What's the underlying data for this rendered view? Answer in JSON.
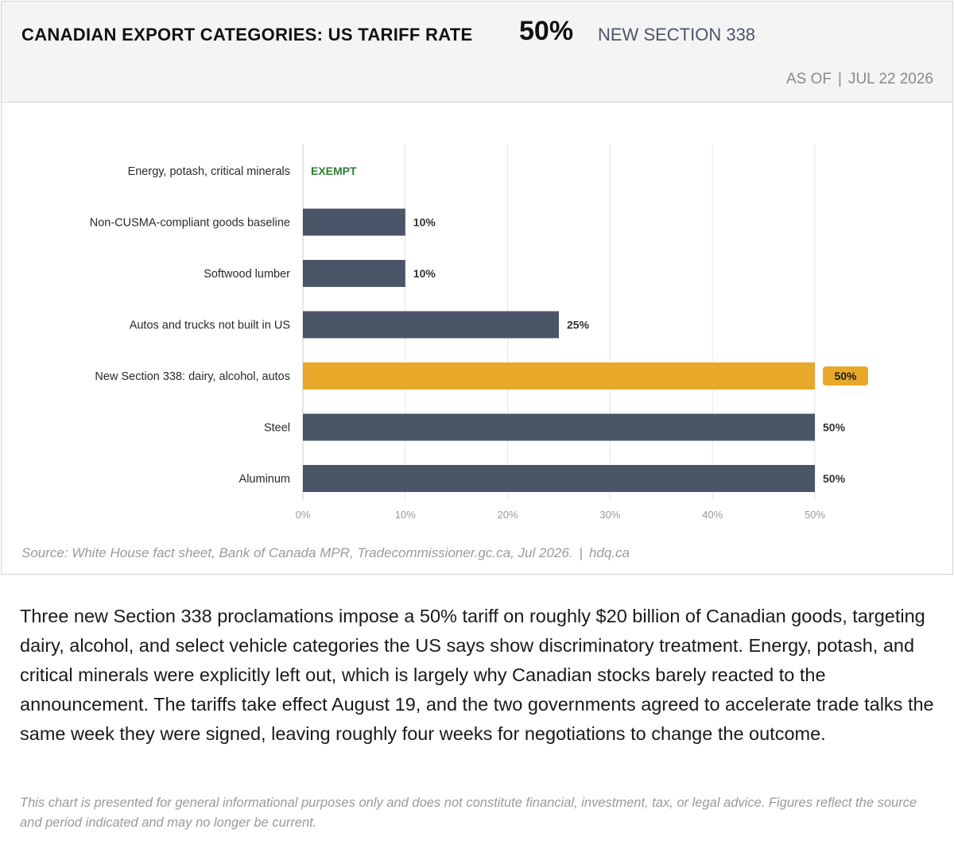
{
  "header": {
    "title": "CANADIAN EXPORT CATEGORIES: US TARIFF RATE",
    "headline_rate": "50%",
    "headline_sub": "NEW SECTION 338",
    "asof_label": "AS OF",
    "asof_sep": "|",
    "asof_date": "JUL 22 2026"
  },
  "chart_data": {
    "type": "bar",
    "orientation": "horizontal",
    "categories": [
      "Energy, potash, critical minerals",
      "Non-CUSMA-compliant goods baseline",
      "Softwood lumber",
      "Autos and trucks not built in US",
      "New Section 338: dairy, alcohol, autos",
      "Steel",
      "Aluminum"
    ],
    "values": [
      0,
      10,
      10,
      25,
      50,
      50,
      50
    ],
    "value_labels": [
      "EXEMPT",
      "10%",
      "10%",
      "25%",
      "50%",
      "50%",
      "50%"
    ],
    "highlight_index": 4,
    "xlim": [
      0,
      50
    ],
    "xticks": [
      0,
      10,
      20,
      30,
      40,
      50
    ],
    "xtick_labels": [
      "0%",
      "10%",
      "20%",
      "30%",
      "40%",
      "50%"
    ],
    "grid": "vertical",
    "colors": {
      "bar": "#4a5568",
      "highlight": "#e8a82a",
      "exempt_text": "#2e7d32",
      "grid": "#e6e6e6",
      "axis": "#cccccc"
    }
  },
  "source": {
    "text": "Source: White House fact sheet, Bank of Canada MPR, Tradecommissioner.gc.ca, Jul 2026.",
    "sep": "|",
    "site": "hdq.ca"
  },
  "body": {
    "paragraph": "Three new Section 338 proclamations impose a 50% tariff on roughly $20 billion of Canadian goods, targeting dairy, alcohol, and select vehicle categories the US says show discriminatory treatment. Energy, potash, and critical minerals were explicitly left out, which is largely why Canadian stocks barely reacted to the announcement. The tariffs take effect August 19, and the two governments agreed to accelerate trade talks the same week they were signed, leaving roughly four weeks for negotiations to change the outcome.",
    "disclaimer": "This chart is presented for general informational purposes only and does not constitute financial, investment, tax, or legal advice. Figures reflect the source and period indicated and may no longer be current."
  }
}
